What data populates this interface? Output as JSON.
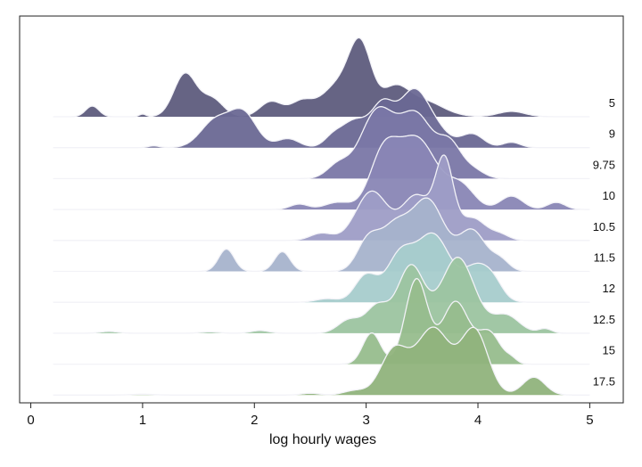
{
  "chart_data": {
    "type": "ridgeline",
    "title": "",
    "xlabel": "log hourly wages",
    "ylabel": "",
    "xlim": [
      -0.1,
      5.3
    ],
    "xticks": [
      0,
      1,
      2,
      3,
      4,
      5
    ],
    "grid": false,
    "legend": "none",
    "series": [
      {
        "name": "5",
        "color": "#5e5c7d",
        "peaks": [
          [
            0.55,
            0.06,
            0.12
          ],
          [
            1.0,
            0.03,
            0.03
          ],
          [
            1.38,
            0.1,
            0.48
          ],
          [
            1.62,
            0.1,
            0.2
          ],
          [
            2.15,
            0.1,
            0.17
          ],
          [
            2.42,
            0.1,
            0.16
          ],
          [
            2.95,
            0.1,
            0.72
          ],
          [
            2.75,
            0.15,
            0.35
          ],
          [
            3.25,
            0.12,
            0.28
          ],
          [
            3.5,
            0.18,
            0.18
          ],
          [
            4.3,
            0.12,
            0.06
          ]
        ]
      },
      {
        "name": "9",
        "color": "#6a6893",
        "peaks": [
          [
            1.1,
            0.05,
            0.02
          ],
          [
            1.65,
            0.13,
            0.3
          ],
          [
            1.9,
            0.12,
            0.38
          ],
          [
            2.3,
            0.1,
            0.1
          ],
          [
            2.7,
            0.08,
            0.1
          ],
          [
            2.9,
            0.12,
            0.3
          ],
          [
            3.15,
            0.1,
            0.45
          ],
          [
            3.4,
            0.12,
            0.45
          ],
          [
            3.55,
            0.15,
            0.3
          ],
          [
            3.95,
            0.1,
            0.15
          ],
          [
            4.3,
            0.08,
            0.06
          ]
        ]
      },
      {
        "name": "9.75",
        "color": "#7a77a6",
        "peaks": [
          [
            2.75,
            0.1,
            0.15
          ],
          [
            3.1,
            0.15,
            0.75
          ],
          [
            3.45,
            0.15,
            0.7
          ],
          [
            3.75,
            0.1,
            0.35
          ],
          [
            3.95,
            0.1,
            0.1
          ]
        ]
      },
      {
        "name": "10",
        "color": "#8986b5",
        "peaks": [
          [
            2.4,
            0.08,
            0.06
          ],
          [
            2.75,
            0.12,
            0.08
          ],
          [
            3.15,
            0.12,
            0.55
          ],
          [
            3.45,
            0.18,
            0.8
          ],
          [
            3.85,
            0.12,
            0.25
          ],
          [
            4.3,
            0.1,
            0.15
          ],
          [
            4.7,
            0.08,
            0.08
          ]
        ]
      },
      {
        "name": "10.5",
        "color": "#9e9dc6",
        "peaks": [
          [
            2.6,
            0.1,
            0.08
          ],
          [
            3.05,
            0.14,
            0.55
          ],
          [
            3.45,
            0.13,
            0.5
          ],
          [
            3.7,
            0.08,
            0.85
          ],
          [
            3.95,
            0.12,
            0.25
          ],
          [
            4.2,
            0.08,
            0.06
          ]
        ]
      },
      {
        "name": "11.5",
        "color": "#a7b3cc",
        "peaks": [
          [
            1.75,
            0.07,
            0.25
          ],
          [
            2.25,
            0.07,
            0.22
          ],
          [
            3.02,
            0.1,
            0.35
          ],
          [
            3.25,
            0.12,
            0.45
          ],
          [
            3.55,
            0.15,
            0.8
          ],
          [
            3.95,
            0.12,
            0.45
          ],
          [
            4.2,
            0.08,
            0.12
          ]
        ]
      },
      {
        "name": "12",
        "color": "#a6cccc",
        "peaks": [
          [
            2.65,
            0.1,
            0.04
          ],
          [
            3.0,
            0.1,
            0.3
          ],
          [
            3.3,
            0.12,
            0.5
          ],
          [
            3.6,
            0.15,
            0.75
          ],
          [
            4.0,
            0.13,
            0.4
          ],
          [
            4.15,
            0.08,
            0.1
          ]
        ]
      },
      {
        "name": "12.5",
        "color": "#9cc4a0",
        "peaks": [
          [
            0.7,
            0.08,
            0.02
          ],
          [
            1.6,
            0.08,
            0.015
          ],
          [
            2.05,
            0.08,
            0.03
          ],
          [
            2.85,
            0.1,
            0.15
          ],
          [
            3.1,
            0.1,
            0.3
          ],
          [
            3.4,
            0.12,
            0.75
          ],
          [
            3.82,
            0.15,
            0.85
          ],
          [
            4.25,
            0.12,
            0.2
          ],
          [
            4.6,
            0.06,
            0.05
          ]
        ]
      },
      {
        "name": "15",
        "color": "#97bd8d",
        "peaks": [
          [
            3.05,
            0.08,
            0.35
          ],
          [
            3.45,
            0.1,
            0.95
          ],
          [
            3.8,
            0.12,
            0.7
          ],
          [
            4.1,
            0.1,
            0.35
          ],
          [
            4.3,
            0.05,
            0.05
          ]
        ]
      },
      {
        "name": "17.5",
        "color": "#90b37c",
        "peaks": [
          [
            1.0,
            0.1,
            0.01
          ],
          [
            2.5,
            0.08,
            0.02
          ],
          [
            2.9,
            0.1,
            0.05
          ],
          [
            3.25,
            0.12,
            0.5
          ],
          [
            3.6,
            0.15,
            0.75
          ],
          [
            3.97,
            0.12,
            0.72
          ],
          [
            4.5,
            0.1,
            0.2
          ]
        ]
      }
    ]
  }
}
